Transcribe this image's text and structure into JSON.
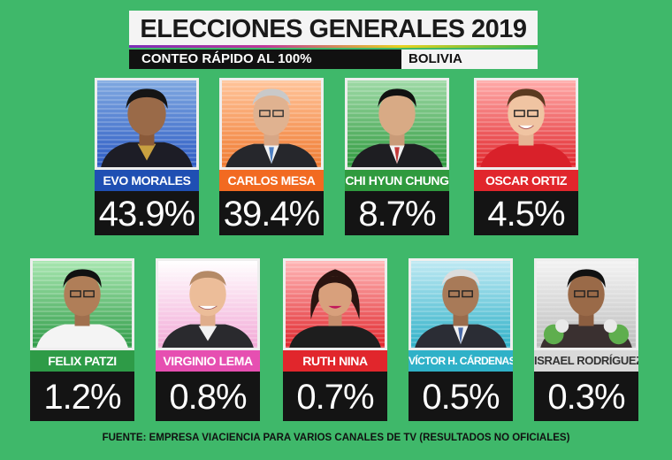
{
  "header": {
    "title": "ELECCIONES GENERALES 2019",
    "subtitle": "CONTEO RÁPIDO AL 100%",
    "country": "BOLIVIA"
  },
  "candidates": [
    {
      "name": "EVO MORALES",
      "percent": "43.9%",
      "color": "#1f4fb3",
      "text_color": "#ffffff"
    },
    {
      "name": "CARLOS MESA",
      "percent": "39.4%",
      "color": "#f26a21",
      "text_color": "#ffffff"
    },
    {
      "name": "CHI HYUN CHUNG",
      "percent": "8.7%",
      "color": "#2f9a3e",
      "text_color": "#ffffff"
    },
    {
      "name": "OSCAR ORTIZ",
      "percent": "4.5%",
      "color": "#e1262c",
      "text_color": "#ffffff"
    },
    {
      "name": "FELIX PATZI",
      "percent": "1.2%",
      "color": "#2e9b47",
      "text_color": "#ffffff"
    },
    {
      "name": "VIRGINIO LEMA",
      "percent": "0.8%",
      "color": "#e64fb1",
      "text_color": "#ffffff"
    },
    {
      "name": "RUTH NINA",
      "percent": "0.7%",
      "color": "#e1262c",
      "text_color": "#ffffff"
    },
    {
      "name": "VÍCTOR H. CÁRDENAS",
      "percent": "0.5%",
      "color": "#2fb1c8",
      "text_color": "#ffffff"
    },
    {
      "name": "ISRAEL RODRÍGUEZ",
      "percent": "0.3%",
      "color": "#d9d9d9",
      "text_color": "#333333"
    }
  ],
  "footer": "FUENTE: EMPRESA VIACIENCIA PARA VARIOS CANALES DE TV (RESULTADOS NO OFICIALES)"
}
